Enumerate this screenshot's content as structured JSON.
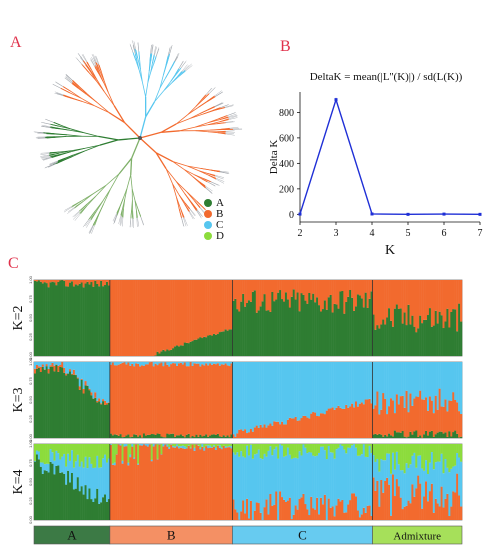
{
  "panels": {
    "a": "A",
    "b": "B",
    "c": "C"
  },
  "legend": [
    {
      "label": "A",
      "color": "#2e7d32"
    },
    {
      "label": "B",
      "color": "#f26a2e"
    },
    {
      "label": "C",
      "color": "#56c6ef"
    },
    {
      "label": "D",
      "color": "#8cdc3c"
    }
  ],
  "chart_data": [
    {
      "type": "line",
      "title": "DeltaK = mean(|L''(K)|) / sd(L(K))",
      "xlabel": "K",
      "ylabel": "Delta K",
      "x": [
        2,
        3,
        4,
        5,
        6,
        7
      ],
      "values": [
        2,
        900,
        3,
        0,
        2,
        0
      ],
      "xticks": [
        2,
        3,
        4,
        5,
        6,
        7
      ],
      "yticks": [
        0,
        200,
        400,
        600,
        800
      ],
      "ylim": [
        -60,
        960
      ],
      "color": "#1f2fd6",
      "grid": false
    },
    {
      "type": "bar",
      "subtype": "stacked-100",
      "rows": [
        {
          "label": "K=2",
          "clusters": [
            "#2e7d32",
            "#f26a2e"
          ]
        },
        {
          "label": "K=3",
          "clusters": [
            "#2e7d32",
            "#f26a2e",
            "#56c6ef"
          ]
        },
        {
          "label": "K=4",
          "clusters": [
            "#2e7d32",
            "#f26a2e",
            "#56c6ef",
            "#8cdc3c"
          ]
        }
      ],
      "yticks": [
        "0.00",
        "0.25",
        "0.50",
        "0.75",
        "1.00"
      ],
      "groups": [
        {
          "label": "A",
          "color": "#3c7a45",
          "fraction": 0.178
        },
        {
          "label": "B",
          "color": "#f49064",
          "fraction": 0.284
        },
        {
          "label": "C",
          "color": "#67cbf0",
          "fraction": 0.331
        },
        {
          "label": "Admixture",
          "color": "#a6e05a",
          "fraction": 0.207
        }
      ]
    }
  ]
}
